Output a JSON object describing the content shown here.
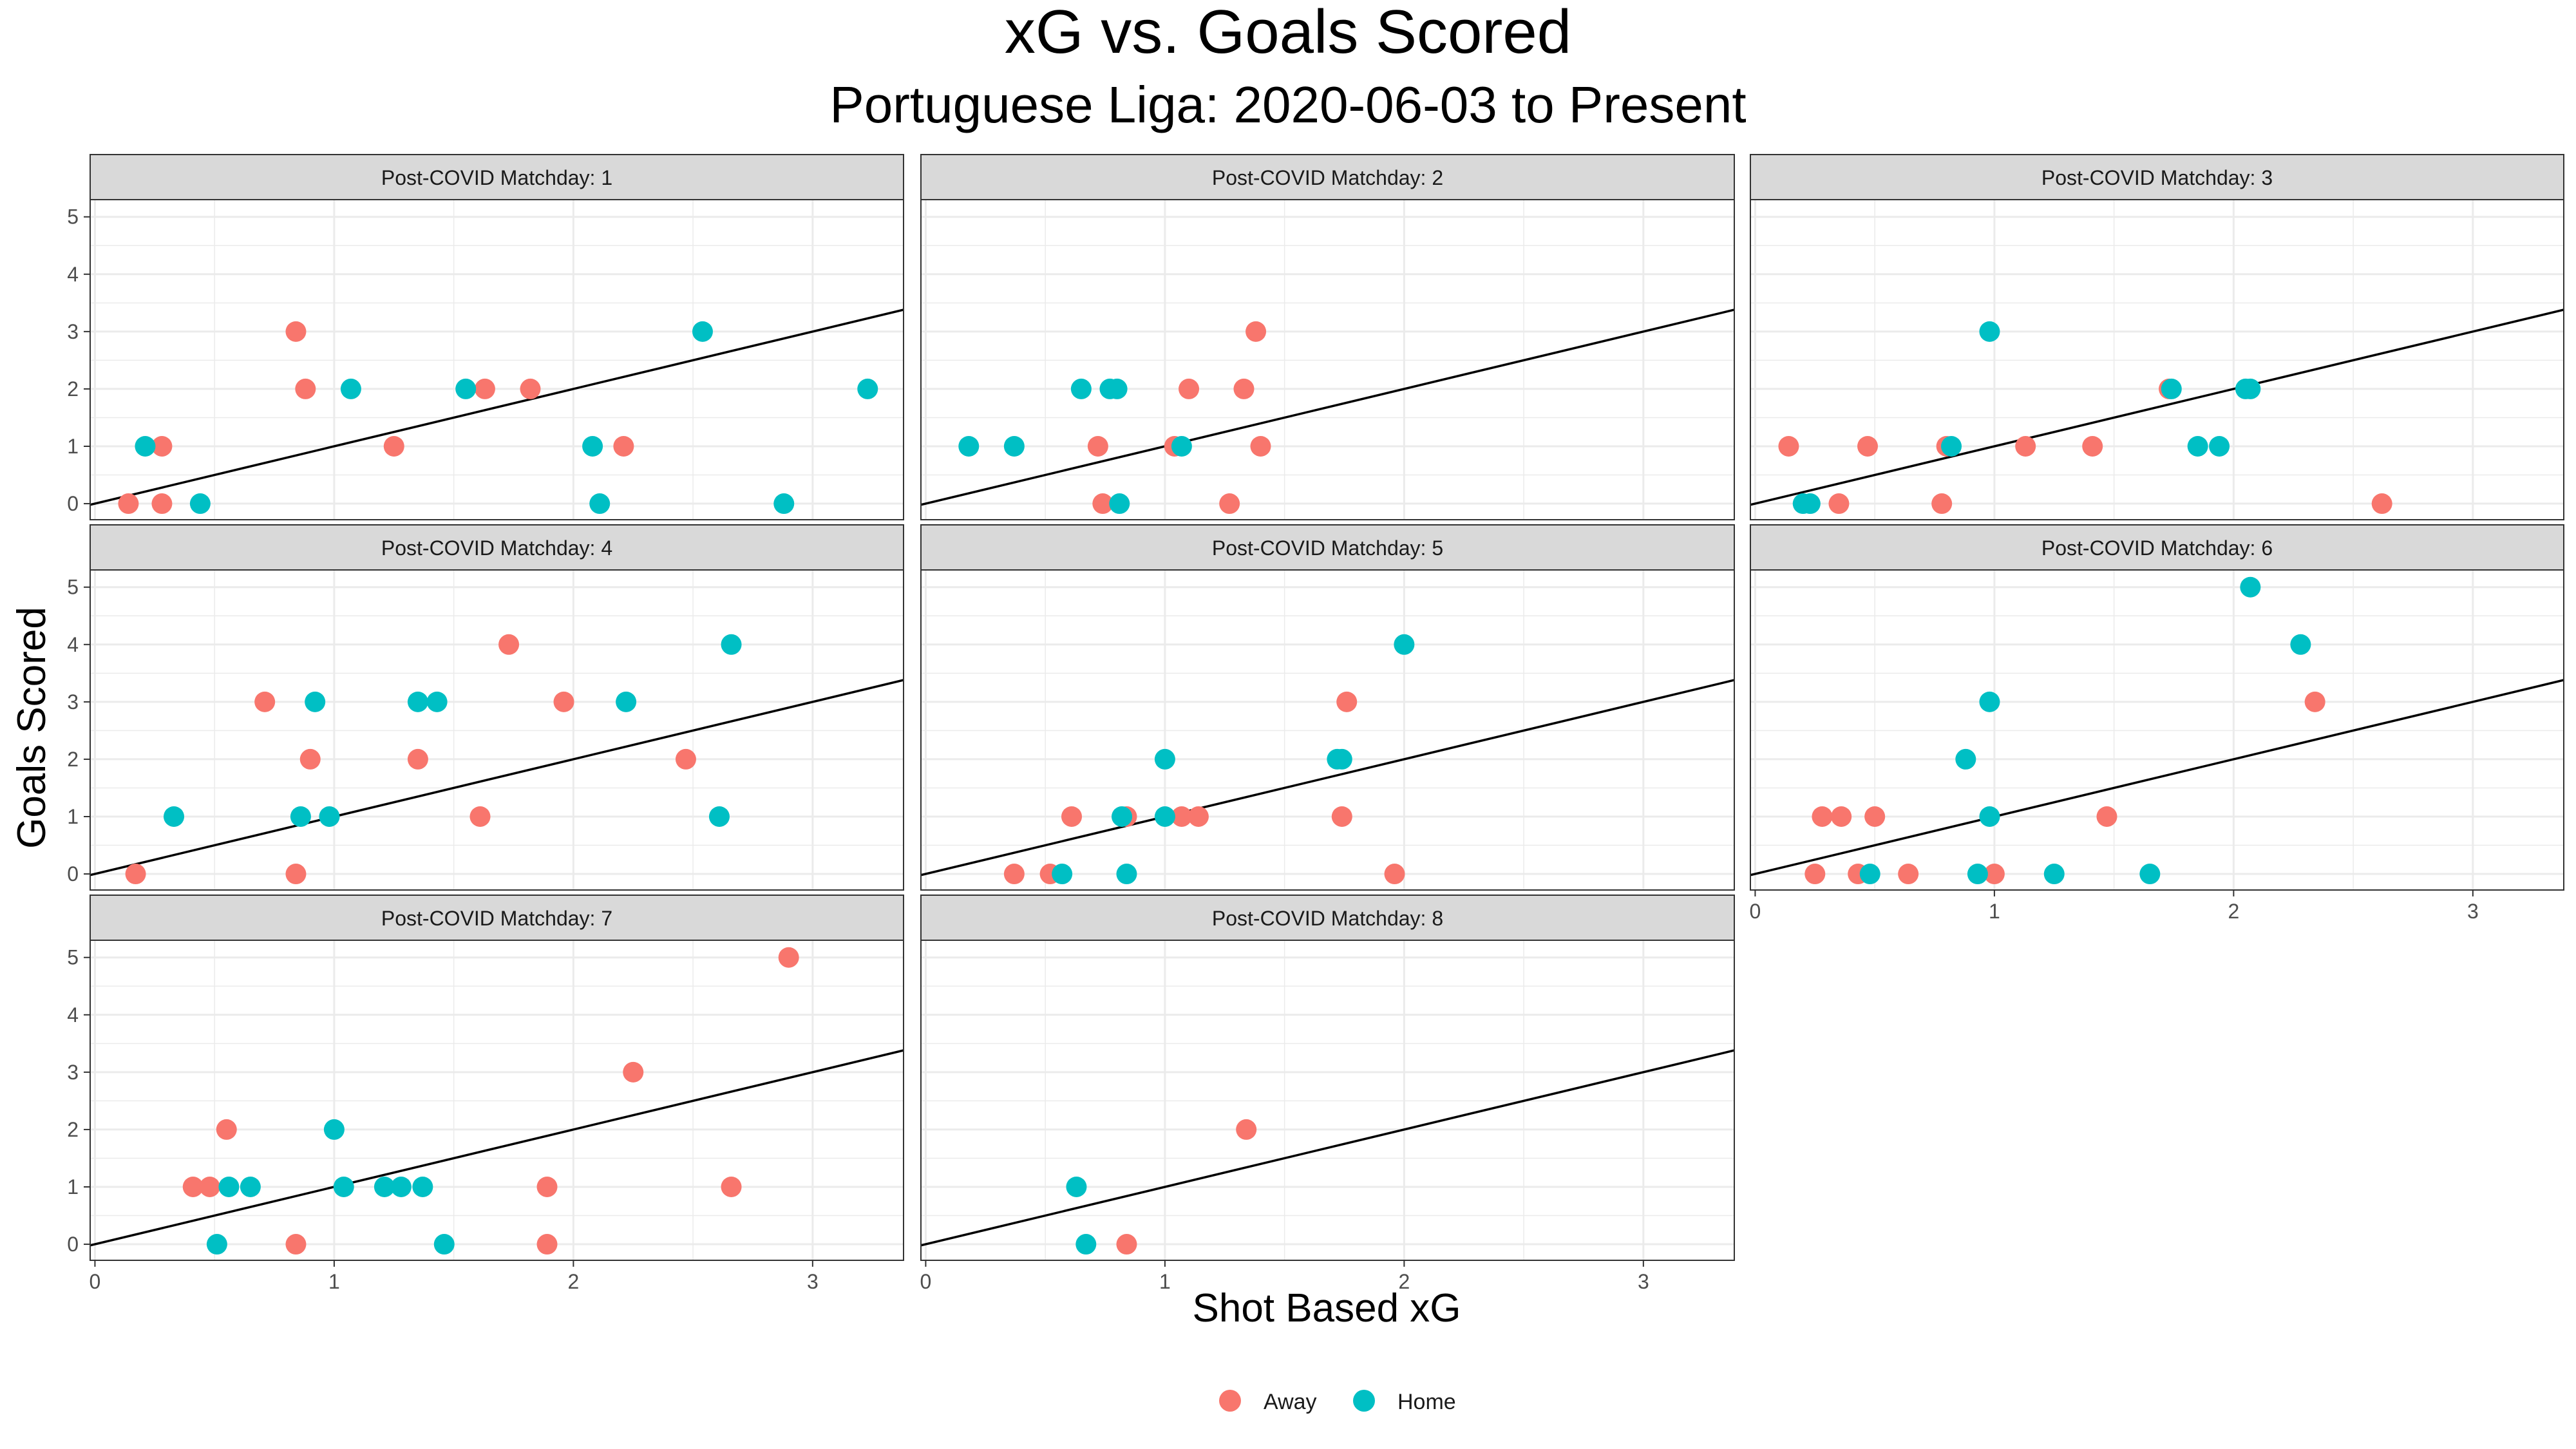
{
  "chart_data": {
    "type": "scatter",
    "title": "xG vs. Goals Scored",
    "subtitle": "Portuguese Liga: 2020-06-03 to Present",
    "xlabel": "Shot Based xG",
    "ylabel": "Goals Scored",
    "xlim": [
      -0.02,
      3.38
    ],
    "ylim": [
      -0.28,
      5.3
    ],
    "x_ticks": [
      0,
      1,
      2,
      3
    ],
    "y_ticks": [
      0,
      1,
      2,
      3,
      4,
      5
    ],
    "reference_line": {
      "intercept": 0,
      "slope": 1
    },
    "grid": true,
    "legend_position": "bottom",
    "colors": {
      "Away": "#F8766D",
      "Home": "#00BFC4"
    },
    "legend": [
      "Away",
      "Home"
    ],
    "facets": [
      {
        "label": "Post-COVID Matchday: 1",
        "away": [
          [
            0.14,
            0
          ],
          [
            0.28,
            0
          ],
          [
            0.28,
            1
          ],
          [
            0.84,
            3
          ],
          [
            0.88,
            2
          ],
          [
            1.25,
            1
          ],
          [
            1.63,
            2
          ],
          [
            1.82,
            2
          ],
          [
            2.21,
            1
          ]
        ],
        "home": [
          [
            0.21,
            1
          ],
          [
            0.44,
            0
          ],
          [
            1.07,
            2
          ],
          [
            1.55,
            2
          ],
          [
            2.08,
            1
          ],
          [
            2.11,
            0
          ],
          [
            2.54,
            3
          ],
          [
            2.88,
            0
          ],
          [
            3.23,
            2
          ]
        ]
      },
      {
        "label": "Post-COVID Matchday: 2",
        "away": [
          [
            0.72,
            1
          ],
          [
            0.74,
            0
          ],
          [
            1.04,
            1
          ],
          [
            1.1,
            2
          ],
          [
            1.27,
            0
          ],
          [
            1.33,
            2
          ],
          [
            1.38,
            3
          ],
          [
            1.4,
            1
          ]
        ],
        "home": [
          [
            0.18,
            1
          ],
          [
            0.37,
            1
          ],
          [
            0.65,
            2
          ],
          [
            0.77,
            2
          ],
          [
            0.8,
            2
          ],
          [
            0.81,
            0
          ],
          [
            1.07,
            1
          ]
        ]
      },
      {
        "label": "Post-COVID Matchday: 3",
        "away": [
          [
            0.14,
            1
          ],
          [
            0.35,
            0
          ],
          [
            0.47,
            1
          ],
          [
            0.78,
            0
          ],
          [
            0.8,
            1
          ],
          [
            1.13,
            1
          ],
          [
            1.41,
            1
          ],
          [
            1.73,
            2
          ],
          [
            2.62,
            0
          ]
        ],
        "home": [
          [
            0.2,
            0
          ],
          [
            0.23,
            0
          ],
          [
            0.82,
            1
          ],
          [
            0.98,
            3
          ],
          [
            1.74,
            2
          ],
          [
            1.85,
            1
          ],
          [
            1.94,
            1
          ],
          [
            2.05,
            2
          ],
          [
            2.07,
            2
          ]
        ]
      },
      {
        "label": "Post-COVID Matchday: 4",
        "away": [
          [
            0.17,
            0
          ],
          [
            0.71,
            3
          ],
          [
            0.84,
            0
          ],
          [
            0.9,
            2
          ],
          [
            1.35,
            2
          ],
          [
            1.61,
            1
          ],
          [
            1.73,
            4
          ],
          [
            1.96,
            3
          ],
          [
            2.47,
            2
          ]
        ],
        "home": [
          [
            0.33,
            1
          ],
          [
            0.86,
            1
          ],
          [
            0.92,
            3
          ],
          [
            0.98,
            1
          ],
          [
            1.35,
            3
          ],
          [
            1.43,
            3
          ],
          [
            2.22,
            3
          ],
          [
            2.61,
            1
          ],
          [
            2.66,
            4
          ]
        ]
      },
      {
        "label": "Post-COVID Matchday: 5",
        "away": [
          [
            0.37,
            0
          ],
          [
            0.52,
            0
          ],
          [
            0.61,
            1
          ],
          [
            0.84,
            1
          ],
          [
            1.07,
            1
          ],
          [
            1.14,
            1
          ],
          [
            1.74,
            1
          ],
          [
            1.76,
            3
          ],
          [
            1.96,
            0
          ]
        ],
        "home": [
          [
            0.57,
            0
          ],
          [
            0.82,
            1
          ],
          [
            0.84,
            0
          ],
          [
            1.0,
            2
          ],
          [
            1.0,
            1
          ],
          [
            1.72,
            2
          ],
          [
            1.74,
            2
          ],
          [
            2.0,
            4
          ]
        ]
      },
      {
        "label": "Post-COVID Matchday: 6",
        "away": [
          [
            0.25,
            0
          ],
          [
            0.28,
            1
          ],
          [
            0.36,
            1
          ],
          [
            0.43,
            0
          ],
          [
            0.5,
            1
          ],
          [
            0.64,
            0
          ],
          [
            1.0,
            0
          ],
          [
            1.47,
            1
          ],
          [
            2.34,
            3
          ]
        ],
        "home": [
          [
            0.48,
            0
          ],
          [
            0.88,
            2
          ],
          [
            0.93,
            0
          ],
          [
            0.98,
            3
          ],
          [
            0.98,
            1
          ],
          [
            1.25,
            0
          ],
          [
            1.65,
            0
          ],
          [
            2.07,
            5
          ],
          [
            2.28,
            4
          ]
        ]
      },
      {
        "label": "Post-COVID Matchday: 7",
        "away": [
          [
            0.41,
            1
          ],
          [
            0.48,
            1
          ],
          [
            0.55,
            2
          ],
          [
            0.84,
            0
          ],
          [
            1.89,
            1
          ],
          [
            1.89,
            0
          ],
          [
            2.25,
            3
          ],
          [
            2.66,
            1
          ],
          [
            2.9,
            5
          ]
        ],
        "home": [
          [
            0.51,
            0
          ],
          [
            0.56,
            1
          ],
          [
            0.65,
            1
          ],
          [
            1.0,
            2
          ],
          [
            1.04,
            1
          ],
          [
            1.21,
            1
          ],
          [
            1.28,
            1
          ],
          [
            1.37,
            1
          ],
          [
            1.46,
            0
          ]
        ]
      },
      {
        "label": "Post-COVID Matchday: 8",
        "away": [
          [
            0.84,
            0
          ],
          [
            1.34,
            2
          ]
        ],
        "home": [
          [
            0.63,
            1
          ],
          [
            0.67,
            0
          ]
        ]
      }
    ]
  }
}
